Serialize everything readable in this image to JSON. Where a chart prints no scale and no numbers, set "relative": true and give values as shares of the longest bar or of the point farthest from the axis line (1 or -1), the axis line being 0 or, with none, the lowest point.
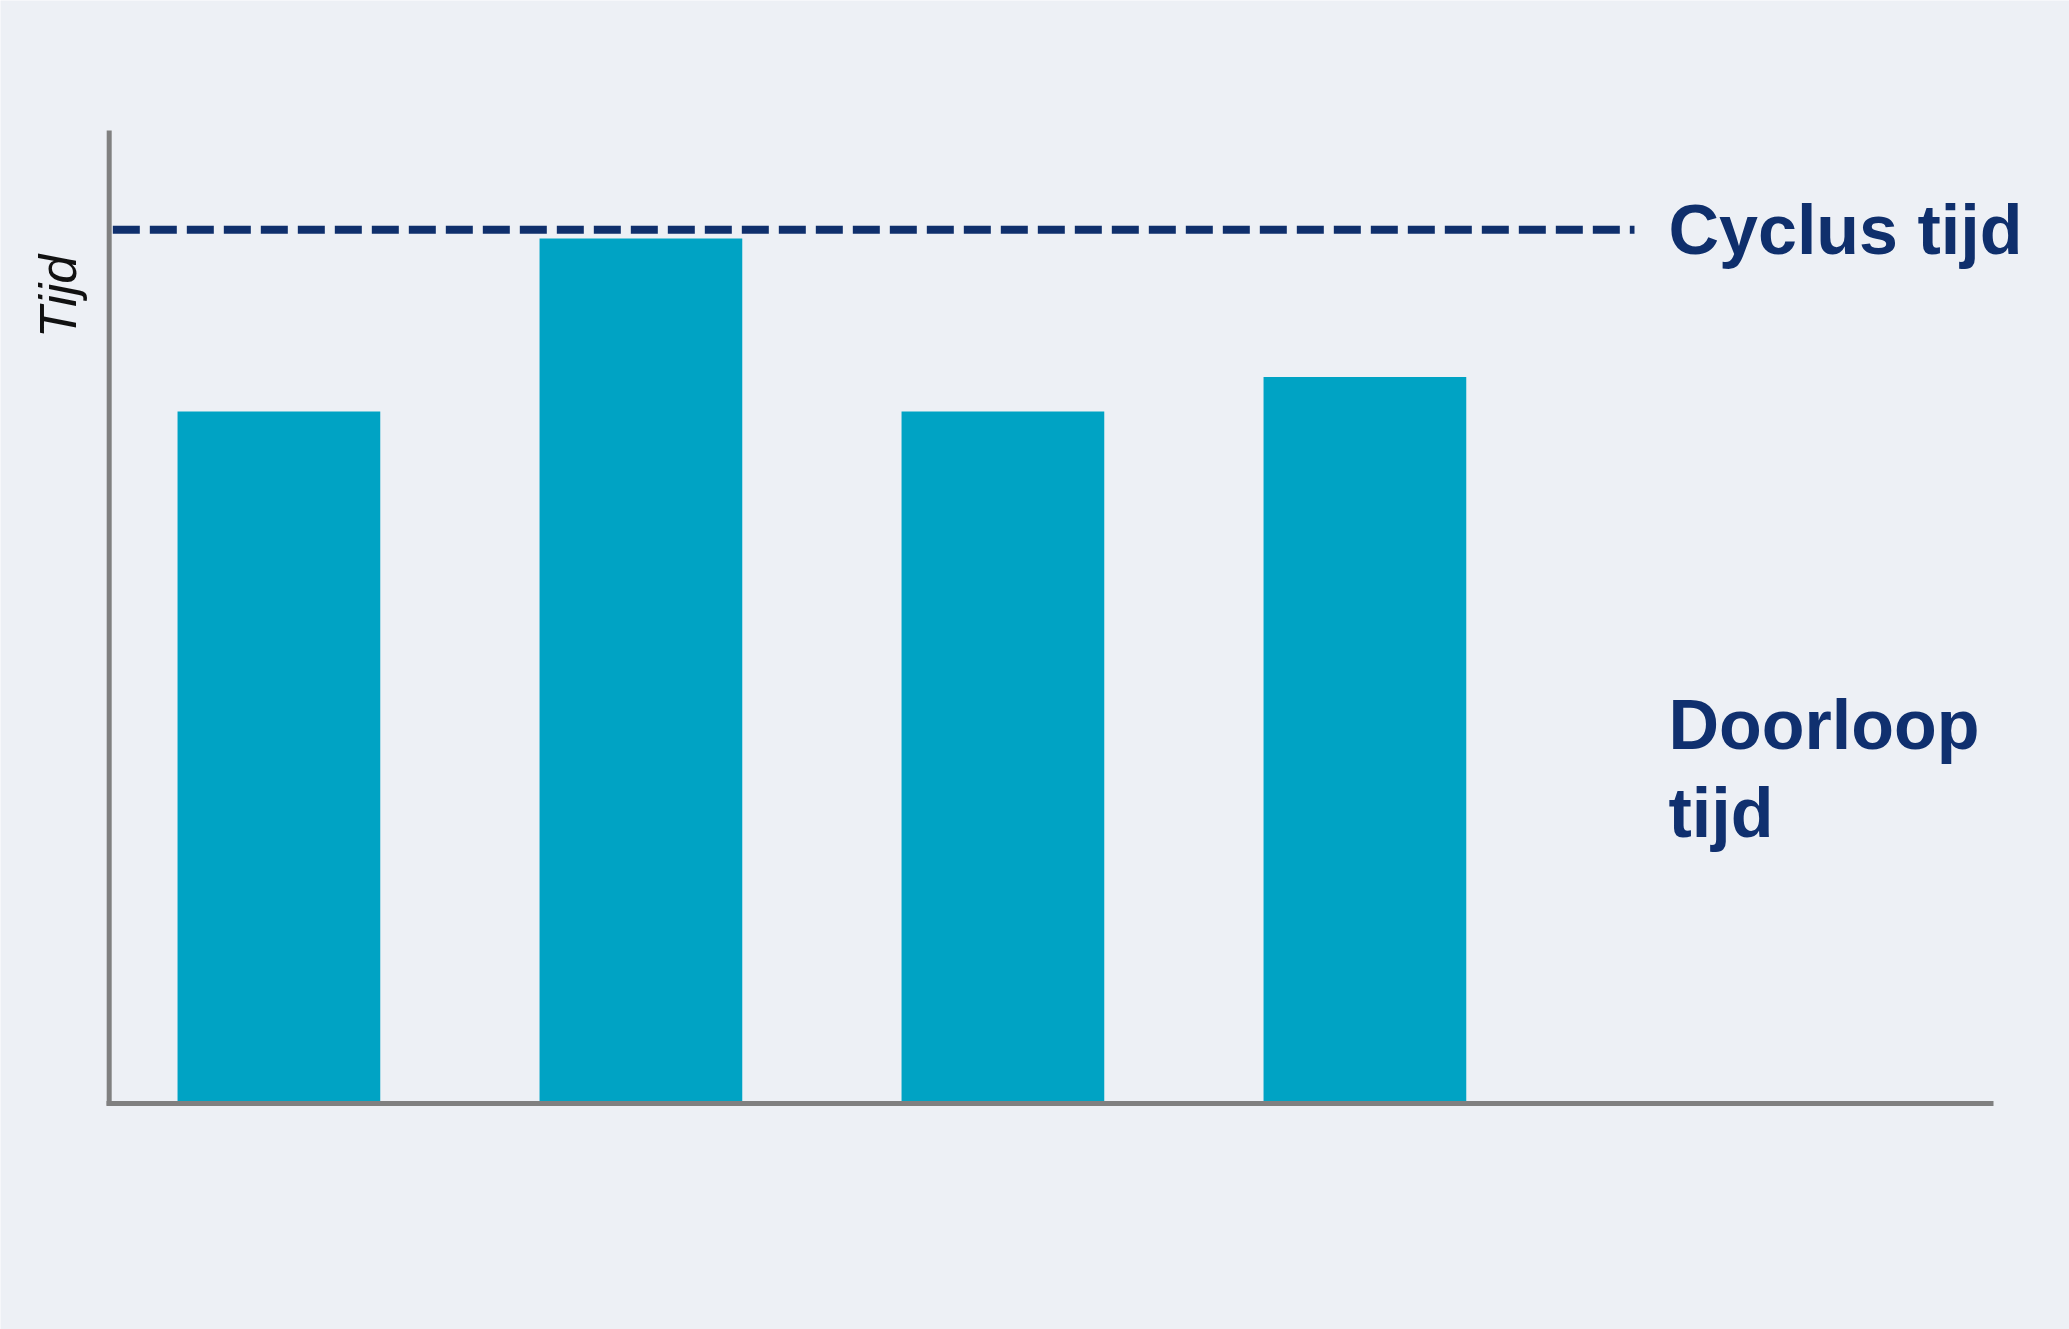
{
  "chart_data": {
    "type": "bar",
    "ylabel": "Tijd",
    "categories": [
      null,
      null,
      null,
      null
    ],
    "values": [
      0.8,
      1,
      0.8,
      0.84
    ],
    "color": "#00a3c4",
    "relative": true,
    "ref_lines": [
      {
        "axis": "y",
        "value": 1.01,
        "label": "Cyclus tijd",
        "color": "#0f2f6c",
        "line_style": "dashed"
      }
    ],
    "annotations": [
      "Doorloop tijd"
    ]
  }
}
